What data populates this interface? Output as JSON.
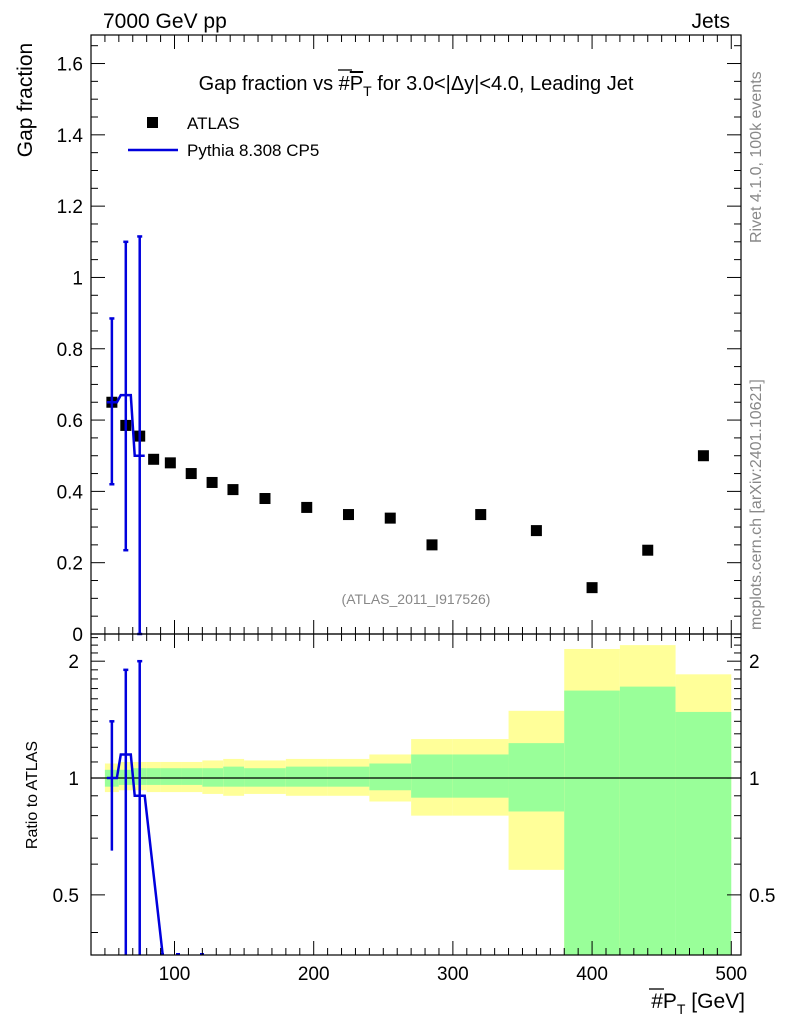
{
  "header": {
    "left": "7000 GeV pp",
    "right": "Jets"
  },
  "side_text": {
    "rivet": "Rivet 4.1.0,  100k events",
    "mcplots": "mcplots.cern.ch [arXiv:2401.10621]"
  },
  "chart_data": [
    {
      "type": "scatter",
      "title": "Gap fraction vs #P_T for 3.0<|Δy|<4.0, Leading Jet",
      "title_parts": [
        "Gap fraction vs #",
        "P",
        "T",
        " for 3.0<|Δy|<4.0, Leading Jet"
      ],
      "ylabel": "Gap fraction",
      "xlabel": "",
      "xlim": [
        40,
        507
      ],
      "ylim": [
        0,
        1.68
      ],
      "yticks": [
        0,
        0.2,
        0.4,
        0.6,
        0.8,
        1,
        1.2,
        1.4,
        1.6
      ],
      "ytick_labels": [
        "0",
        "0.2",
        "0.4",
        "0.6",
        "0.8",
        "1",
        "1.2",
        "1.4",
        "1.6"
      ],
      "watermark": "(ATLAS_2011_I917526)",
      "legend": [
        {
          "name": "ATLAS",
          "marker": "square",
          "color": "#000000"
        },
        {
          "name": "Pythia 8.308 CP5",
          "marker": "line",
          "color": "#0000dd"
        }
      ],
      "series": [
        {
          "name": "ATLAS",
          "x": [
            55,
            65,
            75,
            85,
            97,
            112,
            127,
            142,
            165,
            195,
            225,
            255,
            285,
            320,
            360,
            400,
            440,
            480
          ],
          "y": [
            0.65,
            0.585,
            0.555,
            0.49,
            0.48,
            0.45,
            0.425,
            0.405,
            0.38,
            0.355,
            0.335,
            0.325,
            0.25,
            0.335,
            0.29,
            0.13,
            0.235,
            0.5
          ]
        },
        {
          "name": "Pythia 8.308 CP5",
          "x": [
            55,
            65,
            75
          ],
          "y": [
            0.65,
            0.67,
            0.5
          ],
          "yerr_low": [
            0.42,
            0.235,
            0
          ],
          "yerr_high": [
            0.885,
            1.1,
            1.115
          ]
        }
      ]
    },
    {
      "type": "ratio",
      "ylabel": "Ratio to ATLAS",
      "xlabel": "#P_T [GeV]",
      "xlabel_parts": [
        "#",
        "P",
        "T",
        " [GeV]"
      ],
      "xlim": [
        40,
        507
      ],
      "ylim": [
        0.35,
        2.35
      ],
      "yscale": "log",
      "yticks": [
        0.5,
        1,
        2
      ],
      "ytick_labels": [
        "0.5",
        "1",
        "2"
      ],
      "xticks": [
        100,
        200,
        300,
        400,
        500
      ],
      "xtick_labels": [
        "100",
        "200",
        "300",
        "400",
        "500"
      ],
      "bands": [
        {
          "x0": 50,
          "x1": 60,
          "y_lo": 0.92,
          "y_hi": 1.09,
          "g_lo": 0.95,
          "g_hi": 1.05
        },
        {
          "x0": 60,
          "x1": 70,
          "y_lo": 0.93,
          "y_hi": 1.1,
          "g_lo": 0.96,
          "g_hi": 1.05
        },
        {
          "x0": 70,
          "x1": 80,
          "y_lo": 0.93,
          "y_hi": 1.1,
          "g_lo": 0.96,
          "g_hi": 1.06
        },
        {
          "x0": 80,
          "x1": 90,
          "y_lo": 0.92,
          "y_hi": 1.1,
          "g_lo": 0.96,
          "g_hi": 1.06
        },
        {
          "x0": 90,
          "x1": 105,
          "y_lo": 0.92,
          "y_hi": 1.1,
          "g_lo": 0.96,
          "g_hi": 1.06
        },
        {
          "x0": 105,
          "x1": 120,
          "y_lo": 0.92,
          "y_hi": 1.1,
          "g_lo": 0.96,
          "g_hi": 1.06
        },
        {
          "x0": 120,
          "x1": 135,
          "y_lo": 0.91,
          "y_hi": 1.11,
          "g_lo": 0.95,
          "g_hi": 1.06
        },
        {
          "x0": 135,
          "x1": 150,
          "y_lo": 0.9,
          "y_hi": 1.12,
          "g_lo": 0.95,
          "g_hi": 1.07
        },
        {
          "x0": 150,
          "x1": 180,
          "y_lo": 0.91,
          "y_hi": 1.11,
          "g_lo": 0.95,
          "g_hi": 1.06
        },
        {
          "x0": 180,
          "x1": 210,
          "y_lo": 0.9,
          "y_hi": 1.12,
          "g_lo": 0.95,
          "g_hi": 1.07
        },
        {
          "x0": 210,
          "x1": 240,
          "y_lo": 0.9,
          "y_hi": 1.12,
          "g_lo": 0.95,
          "g_hi": 1.07
        },
        {
          "x0": 240,
          "x1": 270,
          "y_lo": 0.87,
          "y_hi": 1.15,
          "g_lo": 0.93,
          "g_hi": 1.09
        },
        {
          "x0": 270,
          "x1": 300,
          "y_lo": 0.8,
          "y_hi": 1.26,
          "g_lo": 0.89,
          "g_hi": 1.15
        },
        {
          "x0": 300,
          "x1": 340,
          "y_lo": 0.8,
          "y_hi": 1.26,
          "g_lo": 0.89,
          "g_hi": 1.15
        },
        {
          "x0": 340,
          "x1": 380,
          "y_lo": 0.58,
          "y_hi": 1.49,
          "g_lo": 0.82,
          "g_hi": 1.23
        },
        {
          "x0": 380,
          "x1": 420,
          "y_lo": 0.35,
          "y_hi": 2.15,
          "g_lo": 0.35,
          "g_hi": 1.68
        },
        {
          "x0": 420,
          "x1": 460,
          "y_lo": 0.35,
          "y_hi": 2.2,
          "g_lo": 0.35,
          "g_hi": 1.72
        },
        {
          "x0": 460,
          "x1": 500,
          "y_lo": 0.62,
          "y_hi": 1.85,
          "g_lo": 0.35,
          "g_hi": 1.48
        }
      ],
      "series": [
        {
          "name": "Pythia 8.308 CP5",
          "x": [
            55,
            65,
            75,
            85
          ],
          "y": [
            1,
            1.15,
            0.9,
            0.35
          ],
          "yerr_low": [
            0.65,
            0.35,
            0.35,
            0.35
          ],
          "yerr_high": [
            1.4,
            1.9,
            2.0,
            0.35
          ]
        }
      ]
    }
  ]
}
